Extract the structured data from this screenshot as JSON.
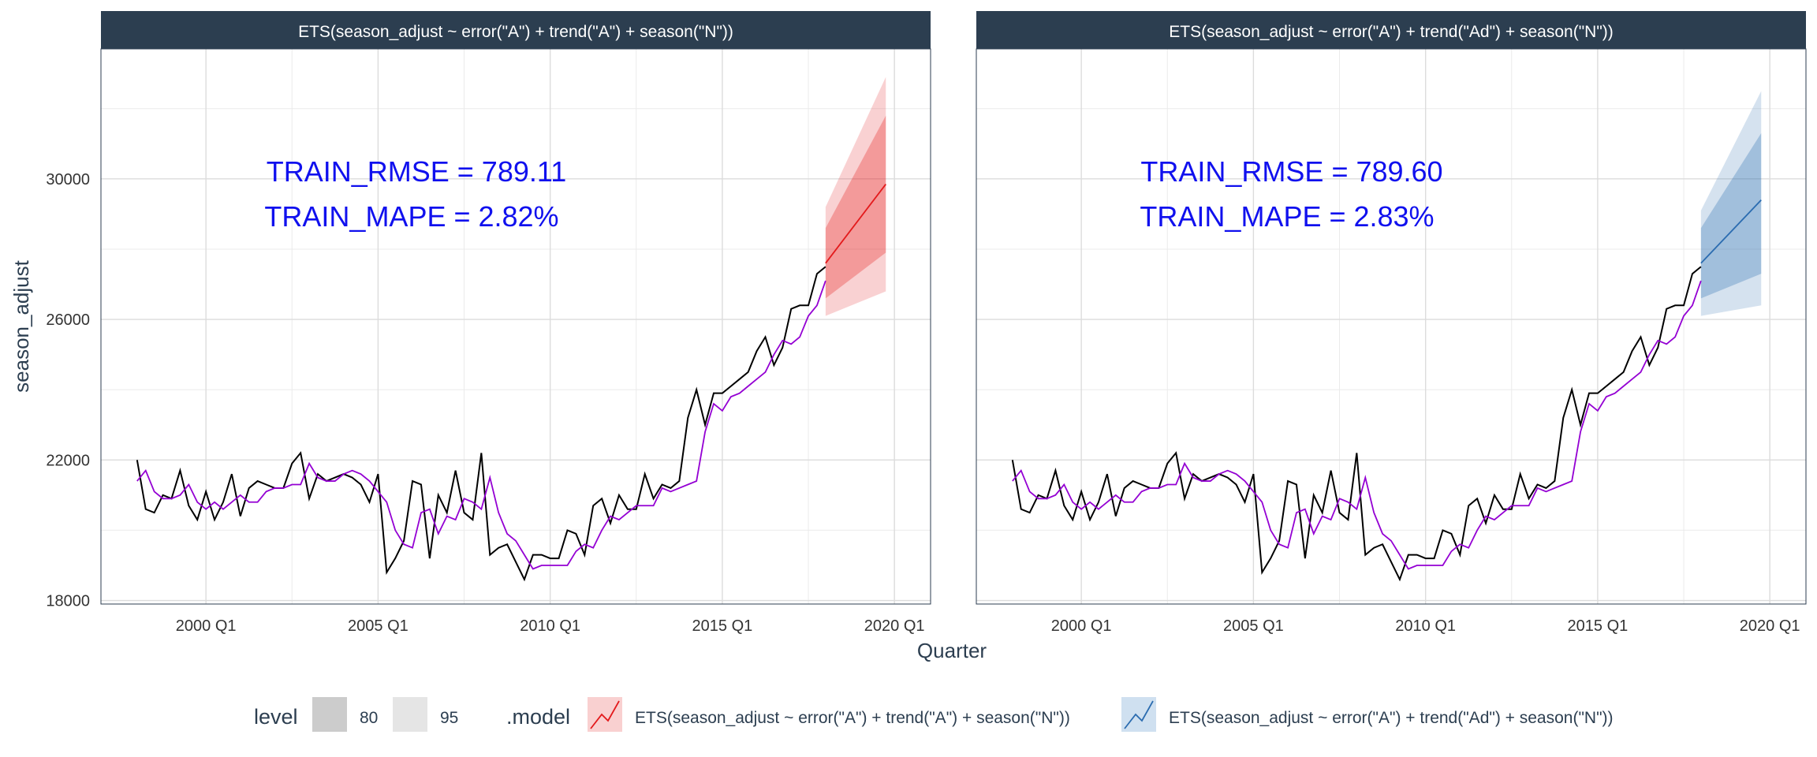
{
  "chart_data": {
    "type": "line",
    "ylabel": "season_adjust",
    "xlabel": "Quarter",
    "y_range": [
      17900,
      33700
    ],
    "x_range": [
      1996.95,
      2021.05
    ],
    "y_ticks": [
      18000,
      22000,
      26000,
      30000
    ],
    "y_tick_labels": [
      "18000",
      "22000",
      "26000",
      "30000"
    ],
    "x_ticks": [
      2000.0,
      2005.0,
      2010.0,
      2015.0,
      2020.0
    ],
    "x_tick_labels": [
      "2000 Q1",
      "2005 Q1",
      "2010 Q1",
      "2015 Q1",
      "2020 Q1"
    ],
    "grid": true,
    "legend_position": "bottom",
    "colors": {
      "actual": "#000000",
      "fitted": "#9400D3",
      "forecast_a": "#e31a1c",
      "forecast_ad": "#2b6cb0",
      "annotation": "#1010ee",
      "strip": "#2c3e50"
    },
    "actual": {
      "name": "season_adjust",
      "start": 1998.0,
      "step": 0.25,
      "values": [
        22000,
        20600,
        20500,
        21000,
        20900,
        21700,
        20700,
        20300,
        21100,
        20300,
        20800,
        21600,
        20400,
        21200,
        21400,
        21300,
        21200,
        21200,
        21900,
        22200,
        20900,
        21600,
        21400,
        21500,
        21600,
        21500,
        21300,
        20800,
        21600,
        18800,
        19200,
        19700,
        21400,
        21300,
        19200,
        21000,
        20500,
        21700,
        20500,
        20300,
        22200,
        19300,
        19500,
        19600,
        19100,
        18600,
        19300,
        19300,
        19200,
        19200,
        20000,
        19900,
        19300,
        20700,
        20900,
        20200,
        21000,
        20600,
        20600,
        21600,
        20900,
        21300,
        21200,
        21400,
        23200,
        24000,
        23000,
        23900,
        23900,
        24100,
        24300,
        24500,
        25100,
        25500,
        24700,
        25200,
        26300,
        26400,
        26400,
        27300,
        27500
      ]
    },
    "panels": [
      {
        "title": "ETS(season_adjust ~ error(\"A\") + trend(\"A\") + season(\"N\"))",
        "annotation_rmse": "TRAIN_RMSE = 789.11",
        "annotation_mape": "TRAIN_MAPE = 2.82%",
        "color": "#e31a1c",
        "fitted": [
          21400,
          21700,
          21100,
          20900,
          20900,
          21000,
          21300,
          20800,
          20600,
          20800,
          20600,
          20800,
          21000,
          20800,
          20800,
          21100,
          21200,
          21200,
          21300,
          21300,
          21900,
          21500,
          21400,
          21400,
          21600,
          21700,
          21600,
          21400,
          21100,
          20800,
          20000,
          19600,
          19500,
          20500,
          20600,
          19900,
          20400,
          20300,
          20900,
          20800,
          20600,
          21500,
          20500,
          19900,
          19700,
          19300,
          18900,
          19000,
          19000,
          19000,
          19000,
          19400,
          19600,
          19500,
          20000,
          20400,
          20300,
          20500,
          20700,
          20700,
          20700,
          21200,
          21100,
          21200,
          21300,
          21400,
          22800,
          23600,
          23400,
          23800,
          23900,
          24100,
          24300,
          24500,
          25000,
          25400,
          25300,
          25500,
          26100,
          26400,
          27100
        ],
        "forecast": {
          "x": [
            2018.0,
            2019.75
          ],
          "mean": [
            27600,
            29850
          ],
          "lower80": [
            26600,
            27900
          ],
          "upper80": [
            28600,
            31800
          ],
          "lower95": [
            26100,
            26800
          ],
          "upper95": [
            29200,
            32900
          ]
        }
      },
      {
        "title": "ETS(season_adjust ~ error(\"A\") + trend(\"Ad\") + season(\"N\"))",
        "annotation_rmse": "TRAIN_RMSE = 789.60",
        "annotation_mape": "TRAIN_MAPE = 2.83%",
        "color": "#2b6cb0",
        "fitted": [
          21400,
          21700,
          21100,
          20900,
          20900,
          21000,
          21300,
          20800,
          20600,
          20800,
          20600,
          20800,
          21000,
          20800,
          20800,
          21100,
          21200,
          21200,
          21300,
          21300,
          21900,
          21500,
          21400,
          21400,
          21600,
          21700,
          21600,
          21400,
          21100,
          20800,
          20000,
          19600,
          19500,
          20500,
          20600,
          19900,
          20400,
          20300,
          20900,
          20800,
          20600,
          21500,
          20500,
          19900,
          19700,
          19300,
          18900,
          19000,
          19000,
          19000,
          19000,
          19400,
          19600,
          19500,
          20000,
          20400,
          20300,
          20500,
          20700,
          20700,
          20700,
          21200,
          21100,
          21200,
          21300,
          21400,
          22800,
          23600,
          23400,
          23800,
          23900,
          24100,
          24300,
          24500,
          25000,
          25400,
          25300,
          25500,
          26100,
          26400,
          27100
        ],
        "forecast": {
          "x": [
            2018.0,
            2019.75
          ],
          "mean": [
            27600,
            29400
          ],
          "lower80": [
            26600,
            27300
          ],
          "upper80": [
            28600,
            31300
          ],
          "lower95": [
            26100,
            26400
          ],
          "upper95": [
            29100,
            32500
          ]
        }
      }
    ],
    "legend": {
      "level_title": "level",
      "level_items": [
        {
          "label": "80",
          "color": "#cccccc"
        },
        {
          "label": "95",
          "color": "#e5e5e5"
        }
      ],
      "model_title": ".model",
      "model_items": [
        {
          "label": "ETS(season_adjust ~ error(\"A\") + trend(\"A\") + season(\"N\"))",
          "color": "#e31a1c",
          "fill": "#f9d0d0"
        },
        {
          "label": "ETS(season_adjust ~ error(\"A\") + trend(\"Ad\") + season(\"N\"))",
          "color": "#2b6cb0",
          "fill": "#cfe0f0"
        }
      ]
    }
  }
}
